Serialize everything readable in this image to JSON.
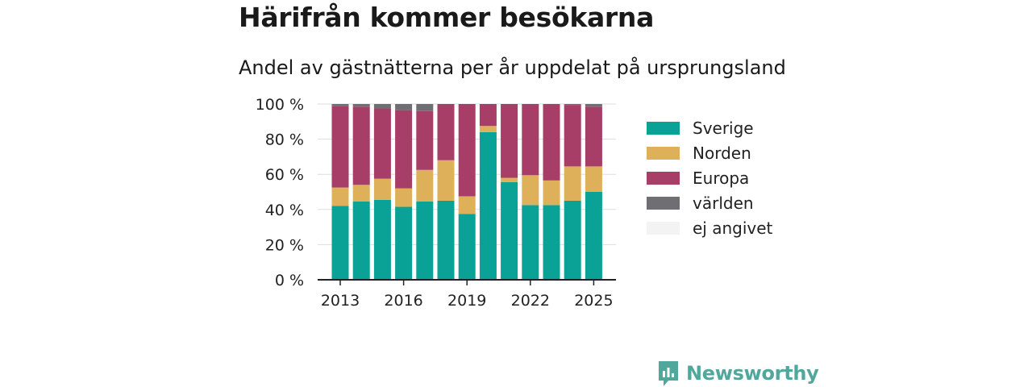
{
  "header": {
    "title": "Härifrån kommer besökarna",
    "subtitle": "Andel av gästnätterna per år uppdelat på ursprungsland"
  },
  "brand": {
    "name": "Newsworthy",
    "color": "#4fa89b",
    "icon": "newsworthy-logo-icon"
  },
  "chart_data": {
    "type": "bar",
    "stacked": true,
    "x": [
      2013,
      2014,
      2015,
      2016,
      2017,
      2018,
      2019,
      2020,
      2021,
      2022,
      2023,
      2024,
      2025
    ],
    "x_ticks": [
      2013,
      2016,
      2019,
      2022,
      2025
    ],
    "y_ticks": [
      0,
      20,
      40,
      60,
      80,
      100
    ],
    "y_tick_labels": [
      "0 %",
      "20 %",
      "40 %",
      "60 %",
      "80 %",
      "100 %"
    ],
    "ylim": [
      0,
      100
    ],
    "grid": true,
    "legend_position": "right",
    "series": [
      {
        "name": "Sverige",
        "color": "#0aa196",
        "values": [
          42,
          44.5,
          45.5,
          41.5,
          44.5,
          45,
          37.5,
          84,
          55.5,
          42.5,
          42.5,
          45,
          50
        ]
      },
      {
        "name": "Norden",
        "color": "#deb05a",
        "values": [
          10.5,
          9.5,
          12,
          10.5,
          18,
          23,
          10,
          3.5,
          2.5,
          17,
          14,
          19.5,
          14.5
        ]
      },
      {
        "name": "Europa",
        "color": "#a63e67",
        "values": [
          46.5,
          44.5,
          40,
          44.5,
          33.5,
          32,
          52.5,
          12.5,
          42,
          40.5,
          43.5,
          35,
          34
        ]
      },
      {
        "name": "världen",
        "color": "#6e6e73",
        "values": [
          1,
          1.5,
          2.5,
          3.5,
          4,
          0,
          0,
          0,
          0,
          0,
          0,
          0.5,
          1.5
        ]
      },
      {
        "name": "ej angivet",
        "color": "#f3f3f3",
        "values": [
          0,
          0,
          0,
          0,
          0,
          0,
          0,
          0,
          0,
          0,
          0,
          0,
          0
        ]
      }
    ]
  }
}
